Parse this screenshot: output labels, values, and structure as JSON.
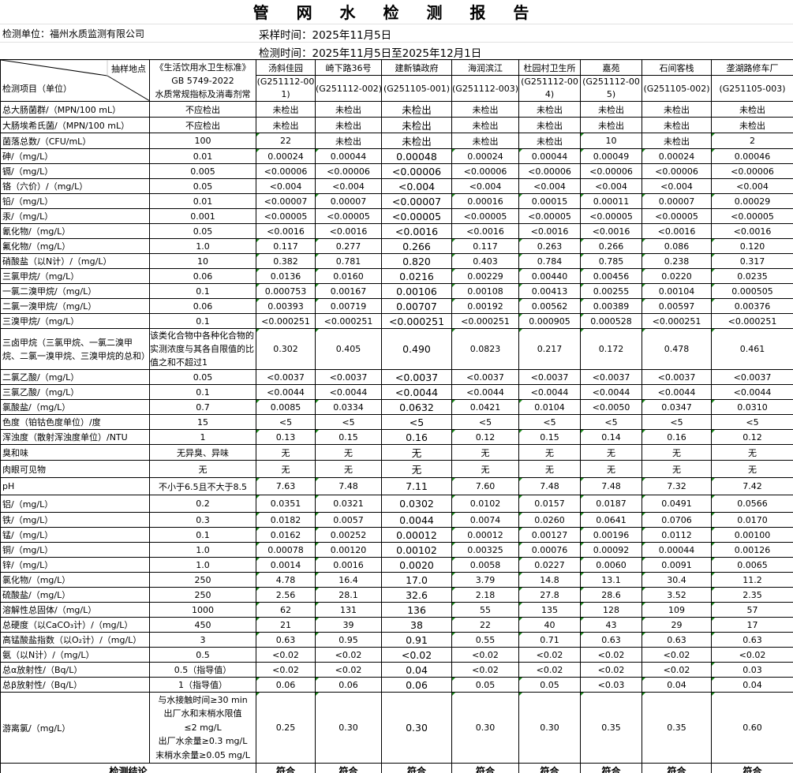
{
  "title": "管 网 水 检 测 报 告",
  "unit": "检测单位：福州水质监测有限公司",
  "sampling_time": "采样时间：2025年11月5日",
  "test_time": "检测时间：2025年11月5日至2025年12月1日",
  "header": {
    "site_label": "抽样地点",
    "item_label": "检测项目（单位）",
    "standard_lines": [
      "《生活饮用水卫生标准》",
      "GB 5749-2022",
      "水质常规指标及消毒剂常"
    ],
    "sites": [
      {
        "name": "汤斜佳园",
        "code": "(G251112-001)"
      },
      {
        "name": "崎下路36号",
        "code": "(G251112-002)"
      },
      {
        "name": "建新镇政府",
        "code": "(G251105-001)"
      },
      {
        "name": "海润滨江",
        "code": "(G251112-003)"
      },
      {
        "name": "杜园村卫生所",
        "code": "(G251112-004)"
      },
      {
        "name": "嘉苑",
        "code": "(G251112-005)"
      },
      {
        "name": "石间客栈",
        "code": "(G251105-002)"
      },
      {
        "name": "垄湖路修车厂",
        "code": "(G251105-003)"
      }
    ]
  },
  "rows": [
    {
      "item": "总大肠菌群/（MPN/100 mL）",
      "std": "不应检出",
      "v": [
        "未检出",
        "未检出",
        "未检出",
        "未检出",
        "未检出",
        "未检出",
        "未检出",
        "未检出"
      ]
    },
    {
      "item": "大肠埃希氏菌/（MPN/100 mL）",
      "std": "不应检出",
      "v": [
        "未检出",
        "未检出",
        "未检出",
        "未检出",
        "未检出",
        "未检出",
        "未检出",
        "未检出"
      ]
    },
    {
      "item": "菌落总数/（CFU/mL）",
      "std": "100",
      "v": [
        "22",
        "未检出",
        "未检出",
        "未检出",
        "未检出",
        "10",
        "未检出",
        "2"
      ]
    },
    {
      "item": "砷/（mg/L）",
      "std": "0.01",
      "v": [
        "0.00024",
        "0.00044",
        "0.00048",
        "0.00024",
        "0.00044",
        "0.00049",
        "0.00024",
        "0.00046"
      ]
    },
    {
      "item": "镉/（mg/L）",
      "std": "0.005",
      "v": [
        "<0.00006",
        "<0.00006",
        "<0.00006",
        "<0.00006",
        "<0.00006",
        "<0.00006",
        "<0.00006",
        "<0.00006"
      ]
    },
    {
      "item": "铬（六价）/（mg/L）",
      "std": "0.05",
      "v": [
        "<0.004",
        "<0.004",
        "<0.004",
        "<0.004",
        "<0.004",
        "<0.004",
        "<0.004",
        "<0.004"
      ]
    },
    {
      "item": "铅/（mg/L）",
      "std": "0.01",
      "v": [
        "<0.00007",
        "0.00007",
        "<0.00007",
        "0.00016",
        "0.00015",
        "0.00011",
        "0.00007",
        "0.00029"
      ]
    },
    {
      "item": "汞/（mg/L）",
      "std": "0.001",
      "v": [
        "<0.00005",
        "<0.00005",
        "<0.00005",
        "<0.00005",
        "<0.00005",
        "<0.00005",
        "<0.00005",
        "<0.00005"
      ]
    },
    {
      "item": "氰化物/（mg/L）",
      "std": "0.05",
      "v": [
        "<0.0016",
        "<0.0016",
        "<0.0016",
        "<0.0016",
        "<0.0016",
        "<0.0016",
        "<0.0016",
        "<0.0016"
      ]
    },
    {
      "item": "氟化物/（mg/L）",
      "std": "1.0",
      "v": [
        "0.117",
        "0.277",
        "0.266",
        "0.117",
        "0.263",
        "0.266",
        "0.086",
        "0.120"
      ]
    },
    {
      "item": "硝酸盐（以N计）/（mg/L）",
      "std": "10",
      "v": [
        "0.382",
        "0.781",
        "0.820",
        "0.403",
        "0.784",
        "0.785",
        "0.238",
        "0.317"
      ]
    },
    {
      "item": "三氯甲烷/（mg/L）",
      "std": "0.06",
      "v": [
        "0.0136",
        "0.0160",
        "0.0216",
        "0.00229",
        "0.00440",
        "0.00456",
        "0.0220",
        "0.0235"
      ]
    },
    {
      "item": "一氯二溴甲烷/（mg/L）",
      "std": "0.1",
      "v": [
        "0.000753",
        "0.00167",
        "0.00106",
        "0.00108",
        "0.00413",
        "0.00255",
        "0.00104",
        "0.000505"
      ]
    },
    {
      "item": "二氯一溴甲烷/（mg/L）",
      "std": "0.06",
      "v": [
        "0.00393",
        "0.00719",
        "0.00707",
        "0.00192",
        "0.00562",
        "0.00389",
        "0.00597",
        "0.00376"
      ]
    },
    {
      "item": "三溴甲烷/（mg/L）",
      "std": "0.1",
      "v": [
        "<0.000251",
        "<0.000251",
        "<0.000251",
        "<0.000251",
        "0.000905",
        "0.000528",
        "<0.000251",
        "<0.000251"
      ]
    },
    {
      "item": "三卤甲烷（三氯甲烷、一氯二溴甲烷、二氯一溴甲烷、三溴甲烷的总和）",
      "std": "该类化合物中各种化合物的实测浓度与其各自限值的比值之和不超过1",
      "v": [
        "0.302",
        "0.405",
        "0.490",
        "0.0823",
        "0.217",
        "0.172",
        "0.478",
        "0.461"
      ],
      "tall": 50
    },
    {
      "item": "二氯乙酸/（mg/L）",
      "std": "0.05",
      "v": [
        "<0.0037",
        "<0.0037",
        "<0.0037",
        "<0.0037",
        "<0.0037",
        "<0.0037",
        "<0.0037",
        "<0.0037"
      ]
    },
    {
      "item": "三氯乙酸/（mg/L）",
      "std": "0.1",
      "v": [
        "<0.0044",
        "<0.0044",
        "<0.0044",
        "<0.0044",
        "<0.0044",
        "<0.0044",
        "<0.0044",
        "<0.0044"
      ]
    },
    {
      "item": "氯酸盐/（mg/L）",
      "std": "0.7",
      "v": [
        "0.0085",
        "0.0334",
        "0.0632",
        "0.0421",
        "0.0104",
        "<0.0050",
        "0.0347",
        "0.0310"
      ]
    },
    {
      "item": "色度（铂钴色度单位）/度",
      "std": "15",
      "v": [
        "<5",
        "<5",
        "<5",
        "<5",
        "<5",
        "<5",
        "<5",
        "<5"
      ]
    },
    {
      "item": "浑浊度（散射浑浊度单位）/NTU",
      "std": "1",
      "v": [
        "0.13",
        "0.15",
        "0.16",
        "0.12",
        "0.15",
        "0.14",
        "0.16",
        "0.12"
      ]
    },
    {
      "item": "臭和味",
      "std": "无异臭、异味",
      "v": [
        "无",
        "无",
        "无",
        "无",
        "无",
        "无",
        "无",
        "无"
      ]
    },
    {
      "item": "肉眼可见物",
      "std": "无",
      "v": [
        "无",
        "无",
        "无",
        "无",
        "无",
        "无",
        "无",
        "无"
      ],
      "tall": 21
    },
    {
      "item": "pH",
      "std": "不小于6.5且不大于8.5",
      "v": [
        "7.63",
        "7.48",
        "7.11",
        "7.60",
        "7.48",
        "7.48",
        "7.32",
        "7.42"
      ],
      "tall": 21
    },
    {
      "item": "铝/（mg/L）",
      "std": "0.2",
      "v": [
        "0.0351",
        "0.0321",
        "0.0302",
        "0.0102",
        "0.0157",
        "0.0187",
        "0.0491",
        "0.0566"
      ],
      "tall": 21
    },
    {
      "item": "铁/（mg/L）",
      "std": "0.3",
      "v": [
        "0.0182",
        "0.0057",
        "0.0044",
        "0.0074",
        "0.0260",
        "0.0641",
        "0.0706",
        "0.0170"
      ]
    },
    {
      "item": "锰/（mg/L）",
      "std": "0.1",
      "v": [
        "0.0162",
        "0.00252",
        "0.00012",
        "0.00012",
        "0.00127",
        "0.00196",
        "0.0112",
        "0.00100"
      ]
    },
    {
      "item": "铜/（mg/L）",
      "std": "1.0",
      "v": [
        "0.00078",
        "0.00120",
        "0.00102",
        "0.00325",
        "0.00076",
        "0.00092",
        "0.00044",
        "0.00126"
      ]
    },
    {
      "item": "锌/（mg/L）",
      "std": "1.0",
      "v": [
        "0.0014",
        "0.0016",
        "0.0020",
        "0.0058",
        "0.0227",
        "0.0060",
        "0.0091",
        "0.0065"
      ]
    },
    {
      "item": "氯化物/（mg/L）",
      "std": "250",
      "v": [
        "4.78",
        "16.4",
        "17.0",
        "3.79",
        "14.8",
        "13.1",
        "30.4",
        "11.2"
      ]
    },
    {
      "item": "硫酸盐/（mg/L）",
      "std": "250",
      "v": [
        "2.56",
        "28.1",
        "32.6",
        "2.18",
        "27.8",
        "28.6",
        "3.52",
        "2.35"
      ]
    },
    {
      "item": "溶解性总固体/（mg/L）",
      "std": "1000",
      "v": [
        "62",
        "131",
        "136",
        "55",
        "135",
        "128",
        "109",
        "57"
      ]
    },
    {
      "item": "总硬度（以CaCO₃计）/（mg/L）",
      "std": "450",
      "v": [
        "21",
        "39",
        "38",
        "22",
        "40",
        "43",
        "29",
        "17"
      ]
    },
    {
      "item": "高锰酸盐指数（以O₂计）/（mg/L）",
      "std": "3",
      "v": [
        "0.63",
        "0.95",
        "0.91",
        "0.55",
        "0.71",
        "0.63",
        "0.63",
        "0.63"
      ]
    },
    {
      "item": "氨（以N计）/（mg/L）",
      "std": "0.5",
      "v": [
        "<0.02",
        "<0.02",
        "<0.02",
        "<0.02",
        "<0.02",
        "<0.02",
        "<0.02",
        "<0.02"
      ]
    },
    {
      "item": "总α放射性/（Bq/L）",
      "std": "0.5（指导值）",
      "v": [
        "<0.02",
        "<0.02",
        "0.04",
        "<0.02",
        "<0.02",
        "<0.02",
        "<0.02",
        "0.03"
      ]
    },
    {
      "item": "总β放射性/（Bq/L）",
      "std": "1（指导值）",
      "v": [
        "0.06",
        "0.06",
        "0.06",
        "0.05",
        "0.05",
        "<0.03",
        "0.04",
        "0.04"
      ]
    },
    {
      "item": "游离氯/（mg/L）",
      "std_lines": [
        "与水接触时间≥30 min",
        "出厂水和末梢水限值",
        "≤2 mg/L",
        "出厂水余量≥0.3 mg/L",
        "末梢水余量≥0.05 mg/L"
      ],
      "v": [
        "0.25",
        "0.30",
        "0.30",
        "0.30",
        "0.30",
        "0.35",
        "0.35",
        "0.60"
      ],
      "tall": 89
    }
  ],
  "conclusion": {
    "label": "检测结论",
    "values": [
      "符合",
      "符合",
      "符合",
      "符合",
      "符合",
      "符合",
      "符合",
      "符合"
    ]
  }
}
